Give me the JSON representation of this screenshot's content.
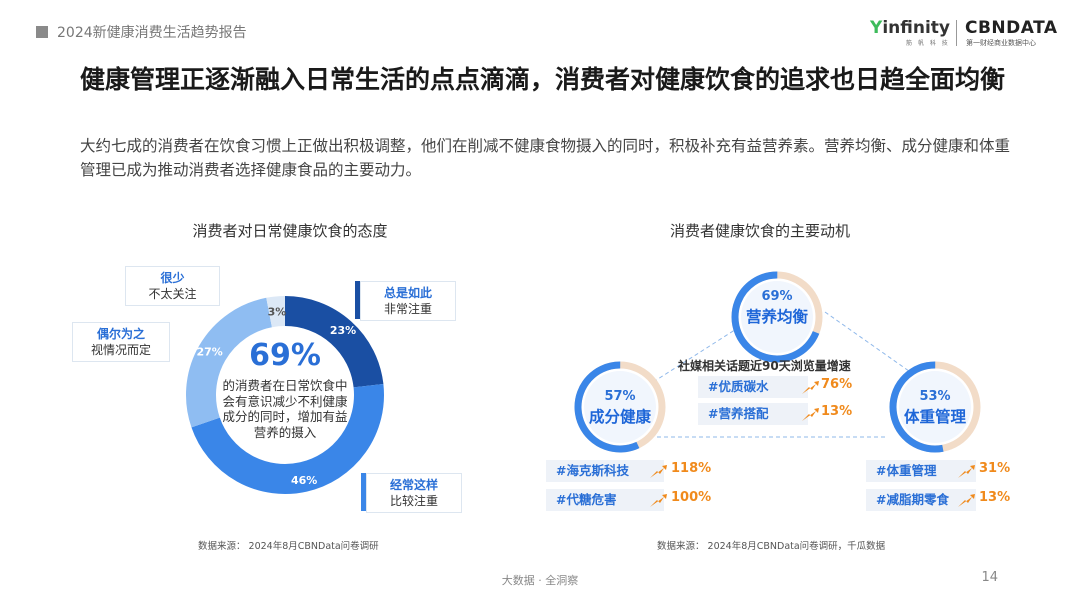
{
  "header": {
    "report_title": "2024新健康消费生活趋势报告"
  },
  "logo": {
    "infinity": "infinity",
    "infinity_y": "Y",
    "infinity_sub": "筋 帆 科 技",
    "cbn": "CBNDATA",
    "cbn_sub": "第一财经商业数据中心"
  },
  "headline": "健康管理正逐渐融入日常生活的点点滴滴，消费者对健康饮食的追求也日趋全面均衡",
  "lead": "大约七成的消费者在饮食习惯上正做出积极调整，他们在削减不健康食物摄入的同时，积极补充有益营养素。营养均衡、成分健康和体重管理已成为推动消费者选择健康食品的主要动力。",
  "chart_data": [
    {
      "type": "pie",
      "title": "消费者对日常健康饮食的态度",
      "categories": [
        "总是如此 非常注重",
        "经常这样 比较注重",
        "偶尔为之 视情况而定",
        "很少 不太关注"
      ],
      "values": [
        23,
        46,
        27,
        3
      ],
      "slice_labels": [
        "23%",
        "46%",
        "27%",
        "3%"
      ],
      "colors": [
        "#1a4fa3",
        "#3a86e8",
        "#8fbdf2",
        "#dce8f6"
      ],
      "center_value": "69%",
      "center_text": [
        "的消费者在日常饮食中",
        "会有意识减少不利健康",
        "成分的同时，增加有益",
        "营养的摄入"
      ]
    },
    {
      "type": "bar",
      "title": "消费者健康饮食的主要动机",
      "note": "社媒相关话题近90天浏览量增速",
      "motivations": [
        {
          "pct": "57%",
          "name": "成分健康"
        },
        {
          "pct": "69%",
          "name": "营养均衡"
        },
        {
          "pct": "53%",
          "name": "体重管理"
        }
      ],
      "topics": [
        {
          "group": "营养均衡",
          "tag": "#优质碳水",
          "growth": "76%"
        },
        {
          "group": "营养均衡",
          "tag": "#营养搭配",
          "growth": "13%"
        },
        {
          "group": "成分健康",
          "tag": "#海克斯科技",
          "growth": "118%"
        },
        {
          "group": "成分健康",
          "tag": "#代糖危害",
          "growth": "100%"
        },
        {
          "group": "体重管理",
          "tag": "#体重管理",
          "growth": "31%"
        },
        {
          "group": "体重管理",
          "tag": "#减脂期零食",
          "growth": "13%"
        }
      ]
    }
  ],
  "callouts": {
    "always": {
      "title": "总是如此",
      "desc": "非常注重"
    },
    "often": {
      "title": "经常这样",
      "desc": "比较注重"
    },
    "sometimes": {
      "title": "偶尔为之",
      "desc": "视情况而定"
    },
    "rarely": {
      "title": "很少",
      "desc": "不太关注"
    }
  },
  "sources": {
    "left": "数据来源： 2024年8月CBNData问卷调研",
    "right": "数据来源： 2024年8月CBNData问卷调研，千瓜数据"
  },
  "footer": "大数据 · 全洞察",
  "page_number": "14"
}
